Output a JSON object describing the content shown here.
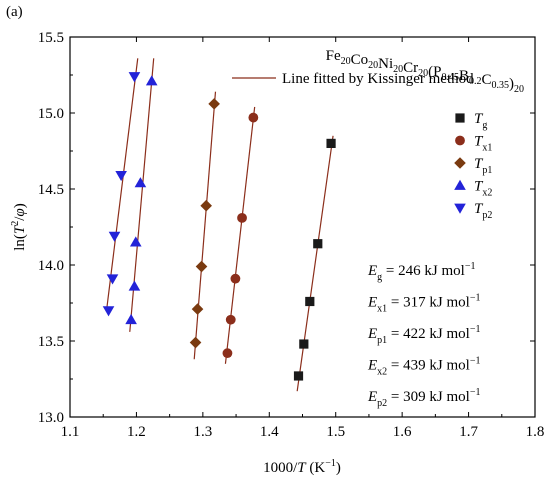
{
  "chart_data": {
    "type": "scatter",
    "panel_label": "(a)",
    "title": "",
    "xlabel": {
      "main": "1000/",
      "italic": "T",
      "unit": " (K",
      "sup": "−1",
      "close": ")"
    },
    "ylabel": {
      "main": "ln(",
      "italic": "T",
      "sup": "2",
      "slash": "/",
      "phi": "φ",
      "close": ")"
    },
    "xlim": [
      1.1,
      1.8
    ],
    "ylim": [
      13.0,
      15.5
    ],
    "xticks": [
      "1.1",
      "1.2",
      "1.3",
      "1.4",
      "1.5",
      "1.6",
      "1.7",
      "1.8"
    ],
    "yticks": [
      "13.0",
      "13.5",
      "14.0",
      "14.5",
      "15.0",
      "15.5"
    ],
    "xtick_values": [
      1.1,
      1.2,
      1.3,
      1.4,
      1.5,
      1.6,
      1.7,
      1.8
    ],
    "ytick_values": [
      13.0,
      13.5,
      14.0,
      14.5,
      15.0,
      15.5
    ],
    "grid": false,
    "legend_placement": "top-right",
    "composition": {
      "parts": [
        {
          "t": "Fe",
          "s": "20"
        },
        {
          "t": "Co",
          "s": "20"
        },
        {
          "t": "Ni",
          "s": "20"
        },
        {
          "t": "Cr",
          "s": "20"
        },
        {
          "t": "(P",
          "s": "0.45"
        },
        {
          "t": "B",
          "s": "0.2"
        },
        {
          "t": "C",
          "s": "0.35"
        },
        {
          "t": ")",
          "s": "20"
        }
      ]
    },
    "fit_line_label": "Line fitted by Kissinger method",
    "fit_line_color": "#8b2e1b",
    "series": [
      {
        "name": "T",
        "sub": "g",
        "marker": "square",
        "color": "#1a1a1a",
        "x": [
          1.444,
          1.452,
          1.461,
          1.473,
          1.493
        ],
        "y": [
          13.27,
          13.48,
          13.76,
          14.14,
          14.8
        ],
        "fit": {
          "x1": 1.442,
          "y1": 13.17,
          "x2": 1.496,
          "y2": 14.85
        }
      },
      {
        "name": "T",
        "sub": "x1",
        "marker": "circle",
        "color": "#8b2e1b",
        "x": [
          1.337,
          1.342,
          1.349,
          1.359,
          1.376
        ],
        "y": [
          13.42,
          13.64,
          13.91,
          14.31,
          14.97
        ],
        "fit": {
          "x1": 1.334,
          "y1": 13.35,
          "x2": 1.378,
          "y2": 15.04
        }
      },
      {
        "name": "T",
        "sub": "p1",
        "marker": "diamond",
        "color": "#7a3a10",
        "x": [
          1.289,
          1.292,
          1.298,
          1.305,
          1.317
        ],
        "y": [
          13.49,
          13.71,
          13.99,
          14.39,
          15.06
        ],
        "fit": {
          "x1": 1.287,
          "y1": 13.38,
          "x2": 1.319,
          "y2": 15.14
        }
      },
      {
        "name": "T",
        "sub": "x2",
        "marker": "triangle-up",
        "color": "#2323d8",
        "x": [
          1.192,
          1.197,
          1.199,
          1.206,
          1.223
        ],
        "y": [
          13.64,
          13.86,
          14.15,
          14.54,
          15.21
        ],
        "fit": {
          "x1": 1.19,
          "y1": 13.56,
          "x2": 1.226,
          "y2": 15.36
        }
      },
      {
        "name": "T",
        "sub": "p2",
        "marker": "triangle-down",
        "color": "#2323d8",
        "x": [
          1.158,
          1.164,
          1.167,
          1.177,
          1.197
        ],
        "y": [
          13.7,
          13.91,
          14.19,
          14.59,
          15.24
        ],
        "fit": {
          "x1": 1.155,
          "y1": 13.7,
          "x2": 1.202,
          "y2": 15.36
        }
      }
    ],
    "annotations": [
      {
        "sym": "E",
        "sub": "g",
        "text": " = 246 kJ mol",
        "sup": "−1"
      },
      {
        "sym": "E",
        "sub": "x1",
        "text": " = 317 kJ mol",
        "sup": "−1"
      },
      {
        "sym": "E",
        "sub": "p1",
        "text": " = 422 kJ mol",
        "sup": "−1"
      },
      {
        "sym": "E",
        "sub": "x2",
        "text": " = 439 kJ mol",
        "sup": "−1"
      },
      {
        "sym": "E",
        "sub": "p2",
        "text": " = 309 kJ mol",
        "sup": "−1"
      }
    ]
  }
}
